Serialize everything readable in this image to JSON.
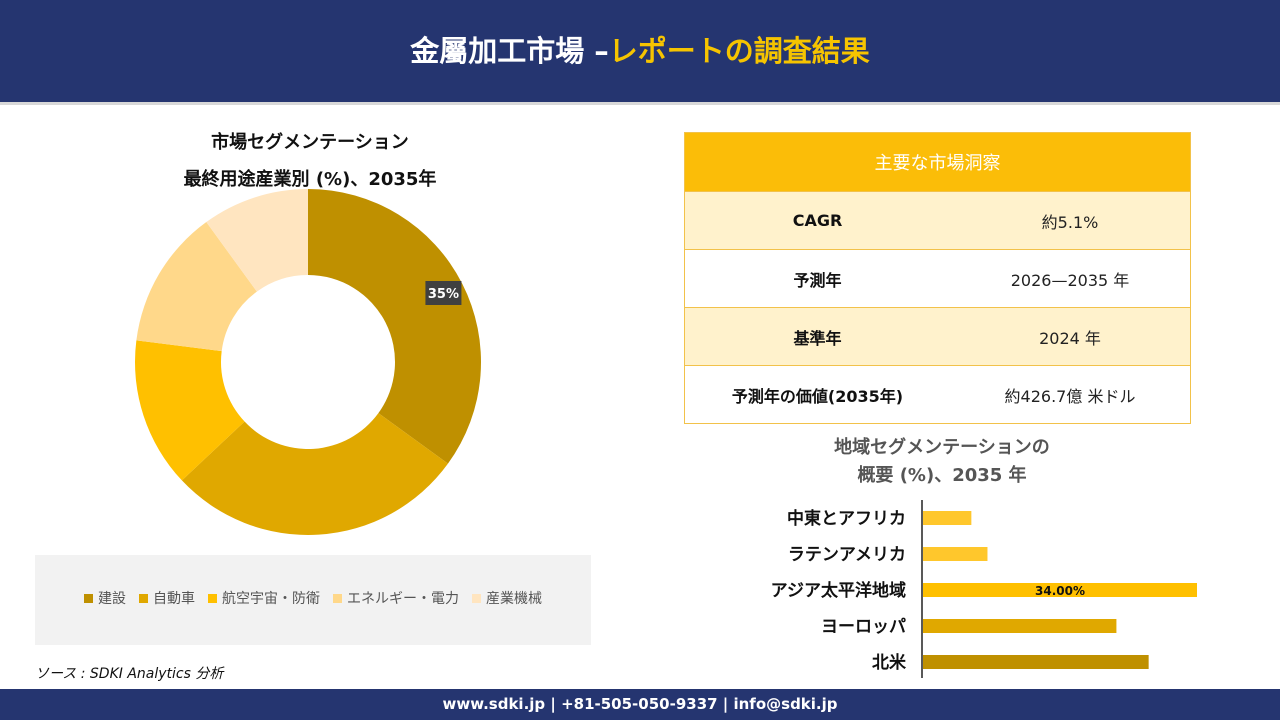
{
  "header": {
    "title_main": "金屬加工市場 –",
    "title_accent": "レポートの調査結果"
  },
  "donut": {
    "title_line1": "市場セグメンテーション",
    "title_line2": "最終用途産業別 (%)、2035年"
  },
  "source": "ソース : SDKI Analytics 分析",
  "insights": {
    "heading": "主要な市場洞察",
    "rows": [
      {
        "label": "CAGR",
        "value": "約5.1%"
      },
      {
        "label": "予測年",
        "value": "2026—2035 年"
      },
      {
        "label": "基準年",
        "value": "2024 年"
      },
      {
        "label": "予測年の価値(2035年)",
        "value": "約426.7億 米ドル"
      }
    ]
  },
  "regional": {
    "title_line1": "地域セグメンテーションの",
    "title_line2": "概要 (%)、2035 年"
  },
  "footer": {
    "text": "www.sdki.jp | +81-505-050-9337 | info@sdki.jp"
  },
  "chart_data": [
    {
      "type": "pie",
      "variant": "donut",
      "categories": [
        "建設",
        "自動車",
        "航空宇宙・防衛",
        "エネルギー・電力",
        "産業機械"
      ],
      "values": [
        35,
        28,
        14,
        13,
        10
      ],
      "data_labels": [
        "35%",
        "",
        "",
        "",
        ""
      ],
      "colors": [
        "#bf9000",
        "#e0a800",
        "#ffc000",
        "#ffd88a",
        "#ffe5c0"
      ],
      "legend_position": "bottom"
    },
    {
      "type": "bar",
      "orientation": "horizontal",
      "categories": [
        "中東とアフリカ",
        "ラテンアメリカ",
        "アジア太平洋地域",
        "ヨーロッパ",
        "北米"
      ],
      "values": [
        6,
        8,
        34,
        24,
        28
      ],
      "data_labels": [
        "",
        "",
        "34.00%",
        "",
        ""
      ],
      "colors": [
        "#ffc72c",
        "#ffc72c",
        "#ffc000",
        "#e0a800",
        "#bf9000"
      ],
      "xlim": [
        0,
        34
      ]
    }
  ]
}
